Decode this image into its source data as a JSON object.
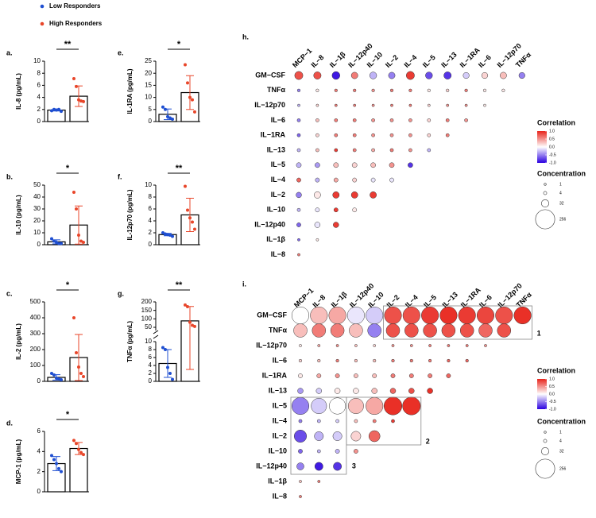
{
  "legend": [
    {
      "name": "Low Responders",
      "color": "#1f4fd1"
    },
    {
      "name": "High Responders",
      "color": "#e8462a"
    }
  ],
  "chart_data": [
    {
      "type": "bar",
      "label": "a.",
      "ylabel": "IL-8 (pg/mL)",
      "ylim": [
        0,
        10
      ],
      "yticks": [
        0,
        2,
        4,
        6,
        8,
        10
      ],
      "significance": "**",
      "series": [
        {
          "mean": 1.9,
          "sd": 0.15,
          "points": [
            1.8,
            2.0,
            1.9,
            2.0,
            1.7
          ]
        },
        {
          "mean": 4.2,
          "sd": 1.7,
          "points": [
            7.1,
            5.8,
            3.6,
            3.4,
            3.3
          ]
        }
      ]
    },
    {
      "type": "bar",
      "label": "b.",
      "ylabel": "IL-10 (pg/mL)",
      "ylim": [
        0,
        50
      ],
      "yticks": [
        0,
        10,
        20,
        30,
        40,
        50
      ],
      "significance": "*",
      "series": [
        {
          "mean": 2.4,
          "sd": 1.7,
          "points": [
            5,
            3,
            2,
            1,
            1
          ]
        },
        {
          "mean": 16.5,
          "sd": 16,
          "points": [
            44,
            30,
            8,
            3,
            2
          ]
        }
      ]
    },
    {
      "type": "bar",
      "label": "c.",
      "ylabel": "IL-2 (pg/mL)",
      "ylim": [
        0,
        500
      ],
      "yticks": [
        0,
        100,
        200,
        300,
        400,
        500
      ],
      "significance": "*",
      "series": [
        {
          "mean": 25,
          "sd": 17,
          "points": [
            50,
            40,
            20,
            15,
            10
          ]
        },
        {
          "mean": 150,
          "sd": 145,
          "points": [
            400,
            180,
            90,
            50,
            30
          ]
        }
      ]
    },
    {
      "type": "bar",
      "label": "d.",
      "ylabel": "MCP-1 (pg/mL)",
      "ylim": [
        0,
        6
      ],
      "yticks": [
        0,
        2,
        4,
        6
      ],
      "significance": "*",
      "series": [
        {
          "mean": 2.8,
          "sd": 0.7,
          "points": [
            3.6,
            3.2,
            2.8,
            2.3,
            2.0
          ]
        },
        {
          "mean": 4.3,
          "sd": 0.6,
          "points": [
            5.1,
            4.8,
            4.2,
            3.9,
            3.7
          ]
        }
      ]
    },
    {
      "type": "bar",
      "label": "e.",
      "ylabel": "IL-1RA (pg/mL)",
      "ylim": [
        0,
        25
      ],
      "yticks": [
        0,
        5,
        10,
        15,
        20,
        25
      ],
      "significance": "*",
      "series": [
        {
          "mean": 3,
          "sd": 2.2,
          "points": [
            6,
            5,
            2,
            1.5,
            1
          ]
        },
        {
          "mean": 12,
          "sd": 7,
          "points": [
            23.5,
            16,
            10,
            9,
            4
          ]
        }
      ]
    },
    {
      "type": "bar",
      "label": "f.",
      "ylabel": "IL-12p70 (pg/mL)",
      "ylim": [
        0,
        10
      ],
      "yticks": [
        0,
        2,
        4,
        6,
        8,
        10
      ],
      "significance": "**",
      "series": [
        {
          "mean": 1.7,
          "sd": 0.2,
          "points": [
            2,
            1.8,
            1.7,
            1.6,
            1.4
          ]
        },
        {
          "mean": 5,
          "sd": 2.8,
          "points": [
            9.8,
            5.8,
            4.5,
            3.8,
            2.6
          ]
        }
      ]
    },
    {
      "type": "bar",
      "label": "g.",
      "ylabel": "TNFα (pg/mL)",
      "ylim": [
        0,
        10
      ],
      "yticks": [
        0,
        2,
        4,
        6,
        8,
        10
      ],
      "ylim_upper": [
        50,
        200
      ],
      "yticks_upper": [
        50,
        100,
        150,
        200
      ],
      "significance": "**",
      "series": [
        {
          "mean": 4.5,
          "sd": 3.5,
          "points": [
            8.5,
            8,
            3.5,
            2,
            0.5
          ]
        },
        {
          "mean": 88,
          "sd": 85,
          "points": [
            182,
            172,
            80,
            62,
            55
          ]
        }
      ]
    },
    {
      "type": "bubble",
      "label": "h.",
      "columns": [
        "MCP−1",
        "IL−8",
        "IL−1β",
        "IL−12p40",
        "IL−10",
        "IL−2",
        "IL−4",
        "IL−5",
        "IL−13",
        "IL−1RA",
        "IL−6",
        "IL−12p70",
        "TNFα"
      ],
      "rows": [
        "GM−CSF",
        "TNFα",
        "IL−12p70",
        "IL−6",
        "IL−1RA",
        "IL−13",
        "IL−5",
        "IL−4",
        "IL−2",
        "IL−10",
        "IL−12p40",
        "IL−1β",
        "IL−8"
      ],
      "correlation": [
        [
          0.8,
          0.8,
          -0.9,
          0.6,
          -0.3,
          -0.5,
          0.9,
          -0.7,
          -0.8,
          -0.2,
          0.2,
          0.3,
          -0.5
        ],
        [
          -0.5,
          0.1,
          0.6,
          0.6,
          0.5,
          0.6,
          0.6,
          0.1,
          0.2,
          0.6,
          0.1,
          0.1
        ],
        [
          -0.3,
          0.2,
          0.6,
          0.6,
          0.5,
          0.6,
          0.6,
          0.2,
          0.5,
          0.5,
          0.1
        ],
        [
          -0.5,
          0.3,
          0.6,
          0.6,
          0.5,
          0.5,
          0.5,
          0.2,
          0.6,
          0.5
        ],
        [
          -0.6,
          0.2,
          0.6,
          0.6,
          0.5,
          0.5,
          0.5,
          0.2,
          0.6
        ],
        [
          -0.3,
          0.3,
          0.9,
          0.6,
          0.4,
          0.6,
          0.5,
          -0.3
        ],
        [
          -0.3,
          -0.4,
          0.3,
          0.2,
          0.3,
          0.5,
          -0.8
        ],
        [
          0.7,
          -0.3,
          0.4,
          0.2,
          -0.1,
          -0.1
        ],
        [
          -0.5,
          0.1,
          0.9,
          0.9,
          0.9
        ],
        [
          -0.3,
          -0.1,
          0.9,
          0.1
        ],
        [
          -0.6,
          -0.1,
          0.9
        ],
        [
          -0.6,
          0.1
        ],
        [
          0.6
        ]
      ],
      "concentration": [
        [
          40,
          32,
          36,
          24,
          28,
          24,
          40,
          28,
          32,
          20,
          20,
          24,
          20
        ],
        [
          3,
          3,
          3,
          3,
          3,
          3,
          3,
          3,
          3,
          3,
          3,
          3
        ],
        [
          2,
          2,
          2,
          2,
          2,
          2,
          2,
          2,
          2,
          2,
          2
        ],
        [
          4,
          4,
          4,
          4,
          4,
          4,
          4,
          4,
          4,
          4
        ],
        [
          4,
          4,
          4,
          4,
          4,
          4,
          4,
          4,
          4
        ],
        [
          4,
          4,
          4,
          4,
          4,
          4,
          4,
          4
        ],
        [
          12,
          12,
          12,
          12,
          12,
          12,
          12
        ],
        [
          8,
          8,
          8,
          8,
          8,
          8
        ],
        [
          16,
          24,
          24,
          24,
          24
        ],
        [
          4,
          8,
          8,
          8
        ],
        [
          8,
          16,
          16
        ],
        [
          2,
          2
        ],
        [
          2
        ]
      ],
      "colors": [
        "#2a00e0",
        "#ffffff",
        "#e8251c"
      ],
      "colorbar_title": "Correlation",
      "colorbar_ticks": [
        {
          "value": 1,
          "label": "1.0"
        },
        {
          "value": 0.5,
          "label": "0.5"
        },
        {
          "value": 0,
          "label": "0.0"
        },
        {
          "value": -0.5,
          "label": "-0.5"
        },
        {
          "value": -1,
          "label": "-1.0"
        }
      ],
      "size_title": "Concentration",
      "size_ticks": [
        1,
        4,
        32,
        256
      ]
    },
    {
      "type": "bubble",
      "label": "i.",
      "columns": [
        "MCP−1",
        "IL−8",
        "IL−1β",
        "IL−12p40",
        "IL−10",
        "IL−2",
        "IL−4",
        "IL−5",
        "IL−13",
        "IL−1RA",
        "IL−6",
        "IL−12p70",
        "TNFα"
      ],
      "rows": [
        "GM−CSF",
        "TNFα",
        "IL−12p70",
        "IL−6",
        "IL−1RA",
        "IL−13",
        "IL−5",
        "IL−4",
        "IL−2",
        "IL−10",
        "IL−12p40",
        "IL−1β",
        "IL−8"
      ],
      "correlation": [
        [
          0.0,
          0.3,
          0.4,
          -0.1,
          -0.2,
          0.8,
          0.8,
          0.9,
          0.95,
          0.9,
          0.85,
          0.8,
          0.95
        ],
        [
          0.3,
          0.6,
          0.6,
          0.3,
          -0.5,
          0.8,
          0.8,
          0.8,
          0.8,
          0.8,
          0.7,
          0.8
        ],
        [
          0.1,
          0.4,
          0.5,
          0.3,
          0.2,
          0.5,
          0.5,
          0.6,
          0.6,
          0.6,
          0.5
        ],
        [
          0.2,
          0.3,
          0.6,
          0.3,
          0.3,
          0.6,
          0.6,
          0.6,
          0.7,
          0.7
        ],
        [
          0.1,
          0.4,
          0.5,
          0.3,
          0.3,
          0.6,
          0.6,
          0.6,
          0.7
        ],
        [
          -0.4,
          -0.2,
          0.1,
          0.1,
          0.3,
          0.7,
          0.8,
          0.95
        ],
        [
          -0.5,
          -0.2,
          0.0,
          0.3,
          0.4,
          0.95,
          0.95
        ],
        [
          -0.5,
          -0.3,
          -0.2,
          0.3,
          0.6,
          0.9
        ],
        [
          -0.7,
          -0.3,
          -0.2,
          0.2,
          0.7
        ],
        [
          -0.6,
          -0.3,
          -0.3,
          0.5
        ],
        [
          -0.5,
          -0.9,
          -0.8
        ],
        [
          0.3,
          0.6
        ],
        [
          0.6
        ]
      ],
      "concentration": [
        [
          200,
          200,
          200,
          200,
          200,
          200,
          200,
          200,
          200,
          200,
          200,
          200,
          200
        ],
        [
          120,
          120,
          120,
          120,
          120,
          120,
          120,
          120,
          120,
          120,
          120,
          120
        ],
        [
          2,
          2,
          2,
          2,
          2,
          2,
          2,
          2,
          2,
          2,
          2
        ],
        [
          3,
          3,
          3,
          3,
          3,
          3,
          3,
          3,
          3,
          3
        ],
        [
          8,
          8,
          8,
          8,
          8,
          8,
          8,
          8,
          8
        ],
        [
          16,
          16,
          16,
          16,
          16,
          16,
          16,
          16
        ],
        [
          200,
          160,
          180,
          160,
          200,
          220,
          220
        ],
        [
          4,
          4,
          4,
          4,
          4,
          4
        ],
        [
          100,
          50,
          50,
          60,
          80
        ],
        [
          8,
          4,
          8,
          8
        ],
        [
          30,
          40,
          40
        ],
        [
          2,
          2
        ],
        [
          2
        ]
      ],
      "colors": [
        "#2a00e0",
        "#ffffff",
        "#e8251c"
      ],
      "colorbar_title": "Correlation",
      "colorbar_ticks": [
        {
          "value": 1,
          "label": "1.0"
        },
        {
          "value": 0.5,
          "label": "0.5"
        },
        {
          "value": 0,
          "label": "0.0"
        },
        {
          "value": -0.5,
          "label": "-0.5"
        },
        {
          "value": -1,
          "label": "-1.0"
        }
      ],
      "size_title": "Concentration",
      "size_ticks": [
        1,
        4,
        32,
        256
      ],
      "boxes": [
        "1",
        "2",
        "3"
      ]
    }
  ]
}
